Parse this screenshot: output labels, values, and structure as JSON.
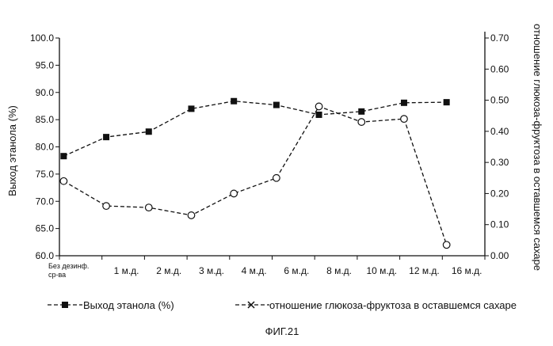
{
  "chart_data": {
    "type": "line",
    "categories": [
      "Без дезинф. ср-ва",
      "1 м.д.",
      "2 м.д.",
      "3 м.д.",
      "4 м.д.",
      "6 м.д.",
      "8 м.д.",
      "10 м.д.",
      "12 м.д.",
      "16 м.д."
    ],
    "category_lines": [
      [
        "Без дезинф.",
        "ср-ва"
      ],
      [
        "1 м.д."
      ],
      [
        "2 м.д."
      ],
      [
        "3 м.д."
      ],
      [
        "4 м.д."
      ],
      [
        "6 м.д."
      ],
      [
        "8 м.д."
      ],
      [
        "10 м.д."
      ],
      [
        "12 м.д."
      ],
      [
        "16 м.д."
      ]
    ],
    "ylabel": "Выход этанола (%)",
    "ylabel_right": "отношение глюкоза-фруктоза в оставшемся сахаре",
    "ylim": [
      60,
      100
    ],
    "ylim_right": [
      0,
      0.7
    ],
    "yticks": [
      "60.0",
      "65.0",
      "70.0",
      "75.0",
      "80.0",
      "85.0",
      "90.0",
      "95.0",
      "100.0"
    ],
    "yticks_right": [
      "0.00",
      "0.10",
      "0.20",
      "0.30",
      "0.40",
      "0.50",
      "0.60",
      "0.70"
    ],
    "series": [
      {
        "name": "Выход этанола (%)",
        "axis": "left",
        "marker": "square",
        "x": [
          0.1,
          1.1,
          2.1,
          3.1,
          4.1,
          5.1,
          6.1,
          7.1,
          8.1,
          9.1
        ],
        "values": [
          78.3,
          81.8,
          82.8,
          87.0,
          88.4,
          87.7,
          85.9,
          86.5,
          88.1,
          88.2
        ]
      },
      {
        "name": "отношение глюкоза-фруктоза в оставшемся сахаре",
        "axis": "right",
        "marker": "circle",
        "x": [
          0.1,
          1.1,
          2.1,
          3.1,
          4.1,
          5.1,
          6.1,
          7.1,
          8.1,
          9.1
        ],
        "values": [
          0.24,
          0.16,
          0.155,
          0.13,
          0.2,
          0.25,
          0.48,
          0.43,
          0.44,
          0.035
        ]
      }
    ],
    "legend_position": "bottom",
    "grid": false
  },
  "caption": "ФИГ.21",
  "colors": {
    "line": "#111111",
    "background": "#ffffff"
  }
}
